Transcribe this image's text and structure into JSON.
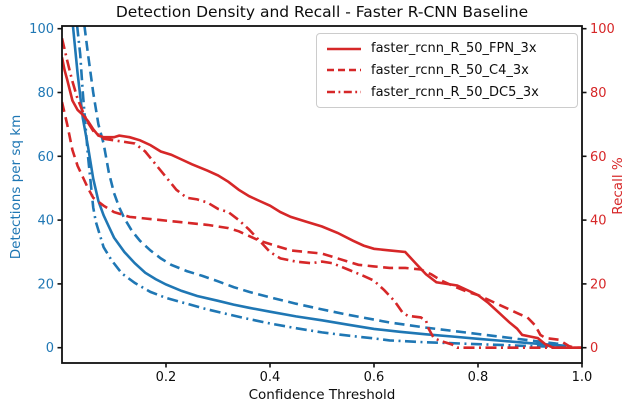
{
  "chart_data": {
    "type": "line",
    "title": "Detection Density and Recall - Faster R-CNN Baseline",
    "xlabel": "Confidence Threshold",
    "ylabel_left": "Detections per sq km",
    "ylabel_right": "Recall %",
    "xlim": [
      0,
      1
    ],
    "ylim_left": [
      0,
      100
    ],
    "ylim_right": [
      0,
      100
    ],
    "grid": false,
    "x_tick_values": [
      0.2,
      0.4,
      0.6,
      0.8,
      1.0
    ],
    "x_tick_labels": [
      "0.2",
      "0.4",
      "0.6",
      "0.8",
      "1.0"
    ],
    "y_tick_values": [
      0,
      20,
      40,
      60,
      80,
      100
    ],
    "y_tick_labels": [
      "0",
      "20",
      "40",
      "60",
      "80",
      "100"
    ],
    "colors": {
      "left_axis": "#1f77b4",
      "right_axis": "#d62728",
      "spine": "#111111",
      "legend_border": "#cccccc"
    },
    "legend": {
      "position": "upper right",
      "entries": [
        {
          "label": "faster_rcnn_R_50_FPN_3x",
          "style": "solid",
          "color": "#d62728"
        },
        {
          "label": "faster_rcnn_R_50_C4_3x",
          "style": "dashed",
          "color": "#d62728"
        },
        {
          "label": "faster_rcnn_R_50_DC5_3x",
          "style": "dashdot",
          "color": "#d62728"
        }
      ]
    },
    "series": [
      {
        "name": "faster_rcnn_R_50_FPN_3x density",
        "axis": "left",
        "style": "solid",
        "color": "#1f77b4",
        "points": [
          [
            0.021,
            101
          ],
          [
            0.03,
            86
          ],
          [
            0.04,
            72
          ],
          [
            0.05,
            63
          ],
          [
            0.06,
            53
          ],
          [
            0.07,
            46
          ],
          [
            0.08,
            41.5
          ],
          [
            0.09,
            38
          ],
          [
            0.1,
            34.5
          ],
          [
            0.12,
            30
          ],
          [
            0.14,
            26.5
          ],
          [
            0.16,
            23.5
          ],
          [
            0.18,
            21.5
          ],
          [
            0.2,
            19.8
          ],
          [
            0.23,
            17.8
          ],
          [
            0.26,
            16.2
          ],
          [
            0.3,
            14.7
          ],
          [
            0.33,
            13.5
          ],
          [
            0.36,
            12.5
          ],
          [
            0.4,
            11.3
          ],
          [
            0.45,
            9.8
          ],
          [
            0.5,
            8.6
          ],
          [
            0.55,
            7.2
          ],
          [
            0.6,
            5.9
          ],
          [
            0.65,
            5.0
          ],
          [
            0.7,
            4.2
          ],
          [
            0.75,
            3.5
          ],
          [
            0.8,
            2.8
          ],
          [
            0.85,
            2.1
          ],
          [
            0.9,
            1.4
          ],
          [
            0.95,
            0.8
          ],
          [
            0.97,
            0.6
          ]
        ]
      },
      {
        "name": "faster_rcnn_R_50_C4_3x density",
        "axis": "left",
        "style": "dashed",
        "color": "#1f77b4",
        "points": [
          [
            0.043,
            101
          ],
          [
            0.05,
            92
          ],
          [
            0.06,
            80
          ],
          [
            0.07,
            70
          ],
          [
            0.08,
            64
          ],
          [
            0.09,
            55
          ],
          [
            0.1,
            48.5
          ],
          [
            0.11,
            44
          ],
          [
            0.12,
            40.5
          ],
          [
            0.135,
            36.5
          ],
          [
            0.15,
            33.5
          ],
          [
            0.17,
            30.5
          ],
          [
            0.19,
            28
          ],
          [
            0.21,
            26
          ],
          [
            0.24,
            24
          ],
          [
            0.27,
            22.5
          ],
          [
            0.3,
            20.8
          ],
          [
            0.33,
            19
          ],
          [
            0.36,
            17.5
          ],
          [
            0.4,
            15.8
          ],
          [
            0.45,
            13.8
          ],
          [
            0.5,
            12
          ],
          [
            0.55,
            10.3
          ],
          [
            0.6,
            8.8
          ],
          [
            0.63,
            7.9
          ],
          [
            0.67,
            7
          ],
          [
            0.7,
            6.3
          ],
          [
            0.75,
            5.3
          ],
          [
            0.8,
            4.3
          ],
          [
            0.85,
            3.3
          ],
          [
            0.9,
            2.3
          ],
          [
            0.95,
            1.3
          ],
          [
            0.97,
            1.0
          ]
        ]
      },
      {
        "name": "faster_rcnn_R_50_DC5_3x density",
        "axis": "left",
        "style": "dashdot",
        "color": "#1f77b4",
        "points": [
          [
            0.029,
            101
          ],
          [
            0.035,
            92
          ],
          [
            0.04,
            80
          ],
          [
            0.05,
            60
          ],
          [
            0.055,
            52
          ],
          [
            0.06,
            44
          ],
          [
            0.065,
            39.5
          ],
          [
            0.08,
            31.5
          ],
          [
            0.095,
            27.5
          ],
          [
            0.115,
            23.3
          ],
          [
            0.14,
            20.3
          ],
          [
            0.17,
            17.5
          ],
          [
            0.2,
            15.6
          ],
          [
            0.24,
            13.8
          ],
          [
            0.275,
            12.2
          ],
          [
            0.31,
            10.8
          ],
          [
            0.35,
            9.3
          ],
          [
            0.4,
            7.6
          ],
          [
            0.45,
            6.1
          ],
          [
            0.5,
            4.8
          ],
          [
            0.55,
            3.8
          ],
          [
            0.6,
            2.9
          ],
          [
            0.63,
            2.3
          ],
          [
            0.7,
            1.7
          ],
          [
            0.75,
            1.4
          ],
          [
            0.8,
            1.1
          ],
          [
            0.85,
            0.8
          ],
          [
            0.9,
            0.5
          ],
          [
            0.95,
            0.3
          ]
        ]
      },
      {
        "name": "faster_rcnn_R_50_FPN_3x recall",
        "axis": "right",
        "style": "solid",
        "color": "#d62728",
        "points": [
          [
            0,
            91
          ],
          [
            0.005,
            87
          ],
          [
            0.01,
            84
          ],
          [
            0.02,
            77.5
          ],
          [
            0.03,
            74.5
          ],
          [
            0.04,
            73
          ],
          [
            0.05,
            71
          ],
          [
            0.06,
            68.5
          ],
          [
            0.07,
            66.5
          ],
          [
            0.08,
            66
          ],
          [
            0.1,
            66
          ],
          [
            0.11,
            66.5
          ],
          [
            0.13,
            66
          ],
          [
            0.15,
            65
          ],
          [
            0.17,
            63.5
          ],
          [
            0.19,
            61.5
          ],
          [
            0.21,
            60.5
          ],
          [
            0.23,
            59
          ],
          [
            0.25,
            57.5
          ],
          [
            0.28,
            55.5
          ],
          [
            0.3,
            54
          ],
          [
            0.32,
            52
          ],
          [
            0.34,
            49.5
          ],
          [
            0.36,
            47.5
          ],
          [
            0.38,
            46
          ],
          [
            0.4,
            44.5
          ],
          [
            0.42,
            42.5
          ],
          [
            0.44,
            41
          ],
          [
            0.47,
            39.5
          ],
          [
            0.5,
            38
          ],
          [
            0.53,
            36
          ],
          [
            0.56,
            33.5
          ],
          [
            0.58,
            32
          ],
          [
            0.6,
            31
          ],
          [
            0.63,
            30.5
          ],
          [
            0.66,
            30
          ],
          [
            0.68,
            26.5
          ],
          [
            0.7,
            23
          ],
          [
            0.72,
            20.5
          ],
          [
            0.76,
            19.5
          ],
          [
            0.78,
            18
          ],
          [
            0.8,
            16.5
          ],
          [
            0.82,
            14
          ],
          [
            0.84,
            11
          ],
          [
            0.86,
            8
          ],
          [
            0.875,
            6
          ],
          [
            0.885,
            4
          ],
          [
            0.9,
            3.5
          ],
          [
            0.915,
            3
          ],
          [
            0.93,
            1
          ],
          [
            0.945,
            0
          ],
          [
            1.0,
            0
          ]
        ]
      },
      {
        "name": "faster_rcnn_R_50_C4_3x recall",
        "axis": "right",
        "style": "dashed",
        "color": "#d62728",
        "points": [
          [
            0,
            77
          ],
          [
            0.005,
            73.5
          ],
          [
            0.01,
            70
          ],
          [
            0.02,
            62
          ],
          [
            0.03,
            57
          ],
          [
            0.04,
            53.5
          ],
          [
            0.05,
            50
          ],
          [
            0.06,
            47
          ],
          [
            0.08,
            44.5
          ],
          [
            0.1,
            42.5
          ],
          [
            0.13,
            41
          ],
          [
            0.16,
            40.5
          ],
          [
            0.19,
            40
          ],
          [
            0.22,
            39.5
          ],
          [
            0.25,
            39
          ],
          [
            0.28,
            38.5
          ],
          [
            0.3,
            38
          ],
          [
            0.32,
            37.5
          ],
          [
            0.34,
            36.5
          ],
          [
            0.36,
            35
          ],
          [
            0.38,
            33.5
          ],
          [
            0.4,
            32.5
          ],
          [
            0.42,
            31.5
          ],
          [
            0.44,
            30.5
          ],
          [
            0.47,
            30
          ],
          [
            0.5,
            29.5
          ],
          [
            0.52,
            28.5
          ],
          [
            0.55,
            27
          ],
          [
            0.57,
            26
          ],
          [
            0.6,
            25.5
          ],
          [
            0.63,
            25
          ],
          [
            0.66,
            25
          ],
          [
            0.69,
            24.5
          ],
          [
            0.71,
            23
          ],
          [
            0.73,
            21
          ],
          [
            0.75,
            19.5
          ],
          [
            0.78,
            17.5
          ],
          [
            0.8,
            16.5
          ],
          [
            0.82,
            15
          ],
          [
            0.84,
            13.5
          ],
          [
            0.86,
            12
          ],
          [
            0.88,
            10.5
          ],
          [
            0.895,
            9.5
          ],
          [
            0.91,
            7
          ],
          [
            0.92,
            4
          ],
          [
            0.93,
            3
          ],
          [
            0.955,
            2.5
          ],
          [
            0.965,
            1.5
          ],
          [
            0.975,
            0.5
          ],
          [
            0.985,
            0
          ],
          [
            1.0,
            0
          ]
        ]
      },
      {
        "name": "faster_rcnn_R_50_DC5_3x recall",
        "axis": "right",
        "style": "dashdot",
        "color": "#d62728",
        "points": [
          [
            0,
            97
          ],
          [
            0.005,
            93.5
          ],
          [
            0.01,
            90
          ],
          [
            0.02,
            83.5
          ],
          [
            0.03,
            78
          ],
          [
            0.04,
            74
          ],
          [
            0.05,
            70.5
          ],
          [
            0.06,
            68
          ],
          [
            0.08,
            65.5
          ],
          [
            0.1,
            65
          ],
          [
            0.12,
            64.5
          ],
          [
            0.14,
            64
          ],
          [
            0.16,
            61.5
          ],
          [
            0.18,
            57.5
          ],
          [
            0.2,
            53.5
          ],
          [
            0.22,
            49.5
          ],
          [
            0.24,
            47
          ],
          [
            0.26,
            46.5
          ],
          [
            0.28,
            45.5
          ],
          [
            0.3,
            43.5
          ],
          [
            0.32,
            42.5
          ],
          [
            0.34,
            40
          ],
          [
            0.36,
            37
          ],
          [
            0.38,
            33.5
          ],
          [
            0.4,
            30
          ],
          [
            0.42,
            28
          ],
          [
            0.45,
            27
          ],
          [
            0.48,
            26.5
          ],
          [
            0.5,
            27
          ],
          [
            0.52,
            26.5
          ],
          [
            0.55,
            24.5
          ],
          [
            0.58,
            22.5
          ],
          [
            0.6,
            21
          ],
          [
            0.62,
            18
          ],
          [
            0.64,
            14.5
          ],
          [
            0.655,
            11
          ],
          [
            0.665,
            10
          ],
          [
            0.69,
            9.5
          ],
          [
            0.7,
            8.5
          ],
          [
            0.705,
            6
          ],
          [
            0.715,
            3
          ],
          [
            0.73,
            2
          ],
          [
            0.75,
            1
          ],
          [
            0.76,
            0
          ],
          [
            1.0,
            0
          ]
        ]
      }
    ]
  }
}
